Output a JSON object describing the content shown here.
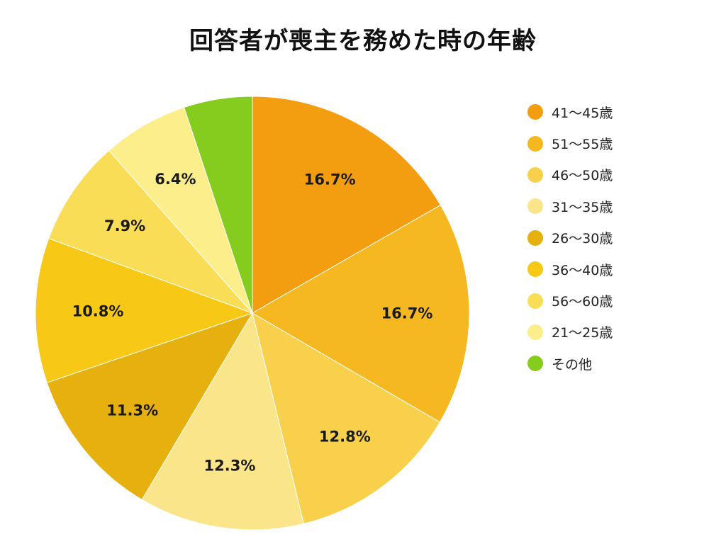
{
  "chart_data": {
    "type": "pie",
    "title": "回答者が喪主を務めた時の年齢",
    "slices": [
      {
        "name": "41〜45歳",
        "value": 16.7,
        "label": "16.7%",
        "color": "#F29E10"
      },
      {
        "name": "51〜55歳",
        "value": 16.7,
        "label": "16.7%",
        "color": "#F6B821"
      },
      {
        "name": "46〜50歳",
        "value": 12.8,
        "label": "12.8%",
        "color": "#F9D04C"
      },
      {
        "name": "31〜35歳",
        "value": 12.3,
        "label": "12.3%",
        "color": "#FBE58A"
      },
      {
        "name": "26〜30歳",
        "value": 11.3,
        "label": "11.3%",
        "color": "#E6B00E"
      },
      {
        "name": "36〜40歳",
        "value": 10.8,
        "label": "10.8%",
        "color": "#F7C916"
      },
      {
        "name": "56〜60歳",
        "value": 7.9,
        "label": "7.9%",
        "color": "#FADD56"
      },
      {
        "name": "21〜25歳",
        "value": 6.4,
        "label": "6.4%",
        "color": "#FCEE8A"
      },
      {
        "name": "その他",
        "value": 5.1,
        "label": "",
        "color": "#86CC1E"
      }
    ],
    "legend_position": "right",
    "start_angle": "top, clockwise"
  }
}
